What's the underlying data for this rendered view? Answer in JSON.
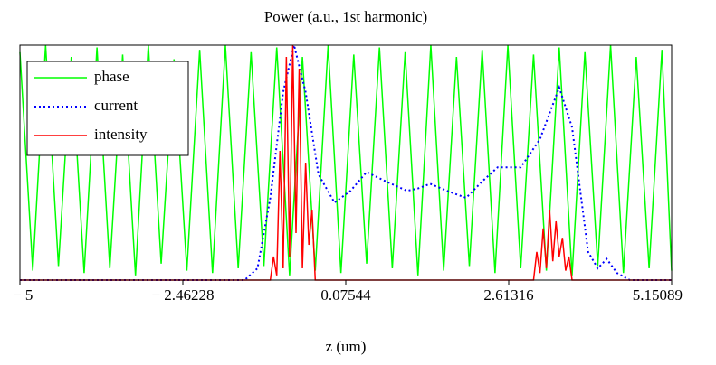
{
  "chart_data": {
    "type": "line",
    "title": "Power  (a.u., 1st harmonic)",
    "x_label": "z (um)",
    "xlim": [
      -5,
      5.15089
    ],
    "ylim": [
      0,
      1
    ],
    "xticks": [
      {
        "value": -5,
        "label": "− 5"
      },
      {
        "value": -2.46228,
        "label": "− 2.46228"
      },
      0.07544,
      2.61316,
      5.15089
    ],
    "legend": "top-left",
    "series": [
      {
        "name": "phase",
        "color": "#00ff00",
        "style": "solid",
        "x": [
          -5,
          -4.8,
          -4.6,
          -4.4,
          -4.2,
          -4,
          -3.8,
          -3.6,
          -3.4,
          -3.2,
          -3,
          -2.8,
          -2.6,
          -2.4,
          -2.2,
          -2,
          -1.8,
          -1.6,
          -1.4,
          -1.2,
          -1,
          -0.8,
          -0.6,
          -0.4,
          -0.2,
          0,
          0.2,
          0.4,
          0.6,
          0.8,
          1,
          1.2,
          1.4,
          1.6,
          1.8,
          2,
          2.2,
          2.4,
          2.6,
          2.8,
          3,
          3.2,
          3.4,
          3.6,
          3.8,
          4,
          4.2,
          4.4,
          4.6,
          4.8,
          5,
          5.15
        ],
        "values": [
          0.97,
          0.04,
          1,
          0.06,
          0.95,
          0.03,
          0.99,
          0.05,
          0.96,
          0.02,
          1,
          0.07,
          0.94,
          0.04,
          0.98,
          0.03,
          1,
          0.05,
          0.97,
          0.06,
          0.99,
          0.02,
          0.95,
          0.04,
          1,
          0.03,
          0.96,
          0.07,
          0.99,
          0.05,
          0.97,
          0.02,
          1,
          0.04,
          0.95,
          0.06,
          0.98,
          0.03,
          1,
          0.05,
          0.96,
          0.04,
          0.99,
          0.02,
          0.97,
          0.06,
          1,
          0.03,
          0.95,
          0.05,
          0.98,
          0.04
        ]
      },
      {
        "name": "current",
        "color": "#0000ff",
        "style": "dotted",
        "x": [
          -5,
          -1.5,
          -1.3,
          -1.1,
          -0.9,
          -0.73,
          -0.55,
          -0.35,
          -0.1,
          0.15,
          0.4,
          0.7,
          1.03,
          1.2,
          1.39,
          1.65,
          1.95,
          2.2,
          2.44,
          2.8,
          3.1,
          3.4,
          3.6,
          3.85,
          4.0,
          4.14,
          4.3,
          4.5,
          5.15
        ],
        "values": [
          0,
          0,
          0.05,
          0.35,
          0.8,
          1,
          0.8,
          0.45,
          0.33,
          0.38,
          0.46,
          0.42,
          0.38,
          0.39,
          0.41,
          0.38,
          0.35,
          0.42,
          0.48,
          0.48,
          0.6,
          0.82,
          0.65,
          0.12,
          0.05,
          0.09,
          0.03,
          0,
          0
        ]
      },
      {
        "name": "intensity",
        "color": "#ff0000",
        "style": "solid",
        "x": [
          -5,
          -1.1,
          -1.05,
          -1.0,
          -0.95,
          -0.9,
          -0.85,
          -0.8,
          -0.75,
          -0.7,
          -0.65,
          -0.6,
          -0.55,
          -0.5,
          -0.45,
          -0.4,
          3.0,
          3.05,
          3.1,
          3.15,
          3.2,
          3.25,
          3.3,
          3.35,
          3.4,
          3.45,
          3.5,
          3.55,
          3.6,
          5.15
        ],
        "values": [
          0,
          0,
          0.1,
          0.02,
          0.55,
          0.05,
          0.95,
          0.1,
          1,
          0.2,
          0.9,
          0.05,
          0.5,
          0.15,
          0.3,
          0,
          0,
          0.12,
          0.03,
          0.22,
          0.05,
          0.3,
          0.08,
          0.25,
          0.1,
          0.18,
          0.04,
          0.1,
          0,
          0
        ]
      }
    ]
  }
}
